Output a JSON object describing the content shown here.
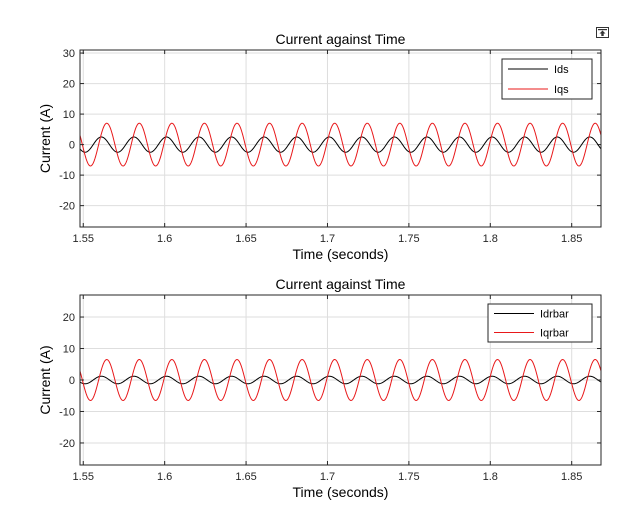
{
  "figure": {
    "restore_icon": "restore-view-icon"
  },
  "chart_data": [
    {
      "type": "line",
      "title": "Current against Time",
      "xlabel": "Time (seconds)",
      "ylabel": "Current (A)",
      "xlim": [
        1.548,
        1.868
      ],
      "ylim": [
        -27,
        31
      ],
      "xticks": [
        1.55,
        1.6,
        1.65,
        1.7,
        1.75,
        1.8,
        1.85
      ],
      "xtick_labels": [
        "1.55",
        "1.6",
        "1.65",
        "1.7",
        "1.75",
        "1.8",
        "1.85"
      ],
      "yticks": [
        30,
        20,
        10,
        0,
        -10,
        -20
      ],
      "ytick_labels": [
        "30",
        "20",
        "10",
        "0",
        "-10",
        "-20"
      ],
      "grid": true,
      "legend_position": "top-right",
      "series": [
        {
          "name": "Ids",
          "color": "#000000",
          "waveform": "sine",
          "amplitude": 2.5,
          "offset": 0,
          "frequency_hz": 50,
          "phase_deg": 70
        },
        {
          "name": "Iqs",
          "color": "#e8181a",
          "waveform": "sine",
          "amplitude": 7,
          "offset": 0,
          "frequency_hz": 50,
          "phase_deg": 10
        }
      ]
    },
    {
      "type": "line",
      "title": "Current against Time",
      "xlabel": "Time (seconds)",
      "ylabel": "Current (A)",
      "xlim": [
        1.548,
        1.868
      ],
      "ylim": [
        -27,
        27
      ],
      "xticks": [
        1.55,
        1.6,
        1.65,
        1.7,
        1.75,
        1.8,
        1.85
      ],
      "xtick_labels": [
        "1.55",
        "1.6",
        "1.65",
        "1.7",
        "1.75",
        "1.8",
        "1.85"
      ],
      "yticks": [
        20,
        10,
        0,
        -10,
        -20
      ],
      "ytick_labels": [
        "20",
        "10",
        "0",
        "-10",
        "-20"
      ],
      "grid": true,
      "legend_position": "top-right",
      "series": [
        {
          "name": "Idrbar",
          "color": "#000000",
          "waveform": "sine",
          "amplitude": 1.2,
          "offset": 0,
          "frequency_hz": 50,
          "phase_deg": 70
        },
        {
          "name": "Iqrbar",
          "color": "#e8181a",
          "waveform": "sine",
          "amplitude": 6.5,
          "offset": 0,
          "frequency_hz": 50,
          "phase_deg": 10
        }
      ]
    }
  ]
}
